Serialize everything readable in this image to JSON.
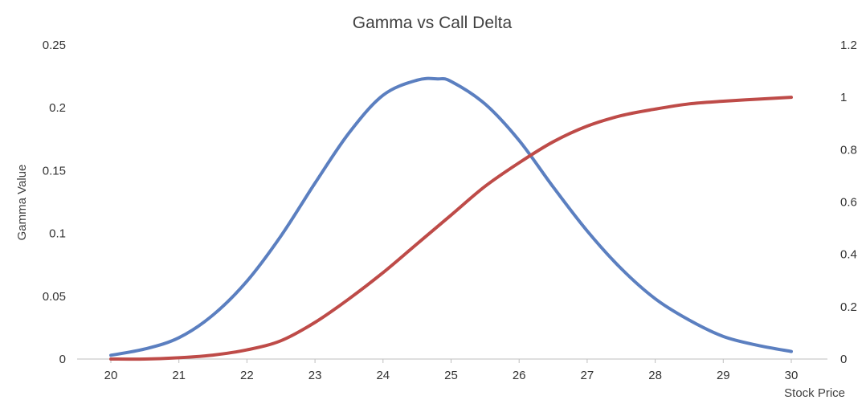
{
  "chart_data": {
    "type": "line",
    "title": "Gamma vs Call Delta",
    "xlabel": "Stock Price",
    "ylabel": "Gamma Value",
    "y2label": "",
    "x": [
      20,
      21,
      22,
      23,
      24,
      25,
      26,
      27,
      28,
      29,
      30
    ],
    "xlim": [
      20,
      30
    ],
    "ylim": [
      0,
      0.25
    ],
    "y2lim": [
      0,
      1.2
    ],
    "y_ticks": [
      "0",
      "0.05",
      "0.1",
      "0.15",
      "0.2",
      "0.25"
    ],
    "y2_ticks": [
      "0",
      "0.2",
      "0.4",
      "0.6",
      "0.8",
      "1",
      "1.2"
    ],
    "grid": false,
    "legend": "none",
    "series": [
      {
        "axis": "left",
        "color": "#5B7FC0",
        "points": [
          [
            20,
            0.003
          ],
          [
            20.5,
            0.008
          ],
          [
            21,
            0.017
          ],
          [
            21.5,
            0.035
          ],
          [
            22,
            0.062
          ],
          [
            22.5,
            0.098
          ],
          [
            23,
            0.14
          ],
          [
            23.5,
            0.18
          ],
          [
            24,
            0.21
          ],
          [
            24.5,
            0.222
          ],
          [
            24.8,
            0.223
          ],
          [
            25,
            0.221
          ],
          [
            25.5,
            0.203
          ],
          [
            26,
            0.174
          ],
          [
            26.5,
            0.137
          ],
          [
            27,
            0.102
          ],
          [
            27.5,
            0.072
          ],
          [
            28,
            0.048
          ],
          [
            28.5,
            0.031
          ],
          [
            29,
            0.018
          ],
          [
            29.5,
            0.011
          ],
          [
            30,
            0.006
          ]
        ]
      },
      {
        "axis": "right",
        "color": "#BE4B48",
        "points": [
          [
            20,
            0.0
          ],
          [
            20.5,
            0.0
          ],
          [
            21,
            0.005
          ],
          [
            21.5,
            0.015
          ],
          [
            22,
            0.035
          ],
          [
            22.5,
            0.07
          ],
          [
            23,
            0.14
          ],
          [
            23.5,
            0.23
          ],
          [
            24,
            0.33
          ],
          [
            24.5,
            0.44
          ],
          [
            25,
            0.55
          ],
          [
            25.5,
            0.66
          ],
          [
            26,
            0.75
          ],
          [
            26.5,
            0.83
          ],
          [
            27,
            0.89
          ],
          [
            27.5,
            0.93
          ],
          [
            28,
            0.955
          ],
          [
            28.5,
            0.975
          ],
          [
            29,
            0.985
          ],
          [
            29.5,
            0.993
          ],
          [
            30,
            1.0
          ]
        ]
      }
    ]
  }
}
